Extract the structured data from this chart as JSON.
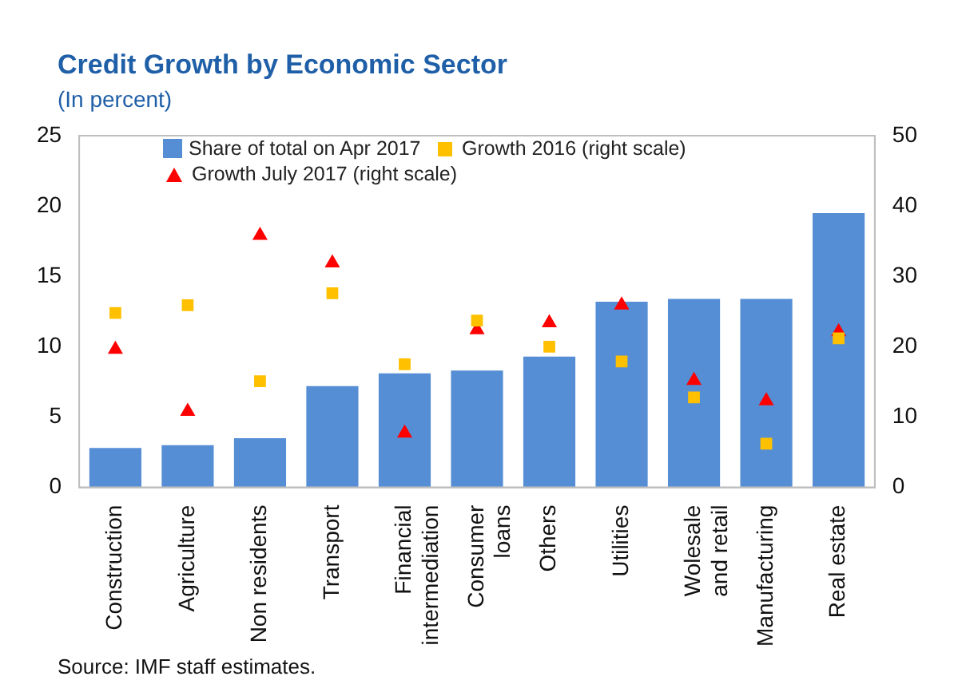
{
  "chart_data": {
    "type": "bar",
    "title": "Credit Growth by Economic Sector",
    "subtitle": "(In percent)",
    "categories": [
      "Construction",
      "Agriculture",
      "Non residents",
      "Transport",
      "Financial\nintermediation",
      "Consumer\nloans",
      "Others",
      "Utilities",
      "Wolesale\nand retail",
      "Manufacturing",
      "Real estate"
    ],
    "series": [
      {
        "name": "Share of total on Apr 2017",
        "color": "#558ed5",
        "values": [
          2.8,
          3.0,
          3.5,
          7.2,
          8.1,
          8.3,
          9.3,
          13.2,
          13.4,
          13.4,
          19.5
        ]
      },
      {
        "name": "Growth 2016 (right scale)",
        "type": "scatter",
        "axis": "y2",
        "marker": "square",
        "color": "#ffc000",
        "x": [
          "Construction",
          "Agriculture",
          "Non residents",
          "Transport",
          "Financial\nintermediation",
          "Consumer\nloans",
          "Others",
          "Utilities",
          "Wolesale\nand retail",
          "Manufacturing",
          "Real estate"
        ],
        "values": [
          24.8,
          25.9,
          15.1,
          27.6,
          17.5,
          23.7,
          20.0,
          17.9,
          12.8,
          6.2,
          21.2
        ]
      },
      {
        "name": "Growth July 2017 (right scale)",
        "type": "scatter",
        "axis": "y2",
        "marker": "triangle",
        "color": "#ff0000",
        "x": [
          "Construction",
          "Agriculture",
          "Non residents",
          "Transport",
          "Financial\nintermediation",
          "Consumer\nloans",
          "Others",
          "Utilities",
          "Wolesale\nand retail",
          "Manufacturing",
          "Real estate"
        ],
        "values": [
          19.6,
          10.8,
          35.8,
          31.9,
          7.7,
          22.4,
          23.4,
          25.9,
          15.2,
          12.3,
          22.1
        ]
      }
    ],
    "ylim": [
      0,
      25
    ],
    "yticks": [
      0,
      5,
      10,
      15,
      20,
      25
    ],
    "y2lim": [
      0,
      50
    ],
    "y2ticks": [
      0,
      10,
      20,
      30,
      40,
      50
    ],
    "grid": false,
    "legend": "top",
    "annotations": [
      "Source: IMF staff estimates."
    ]
  }
}
